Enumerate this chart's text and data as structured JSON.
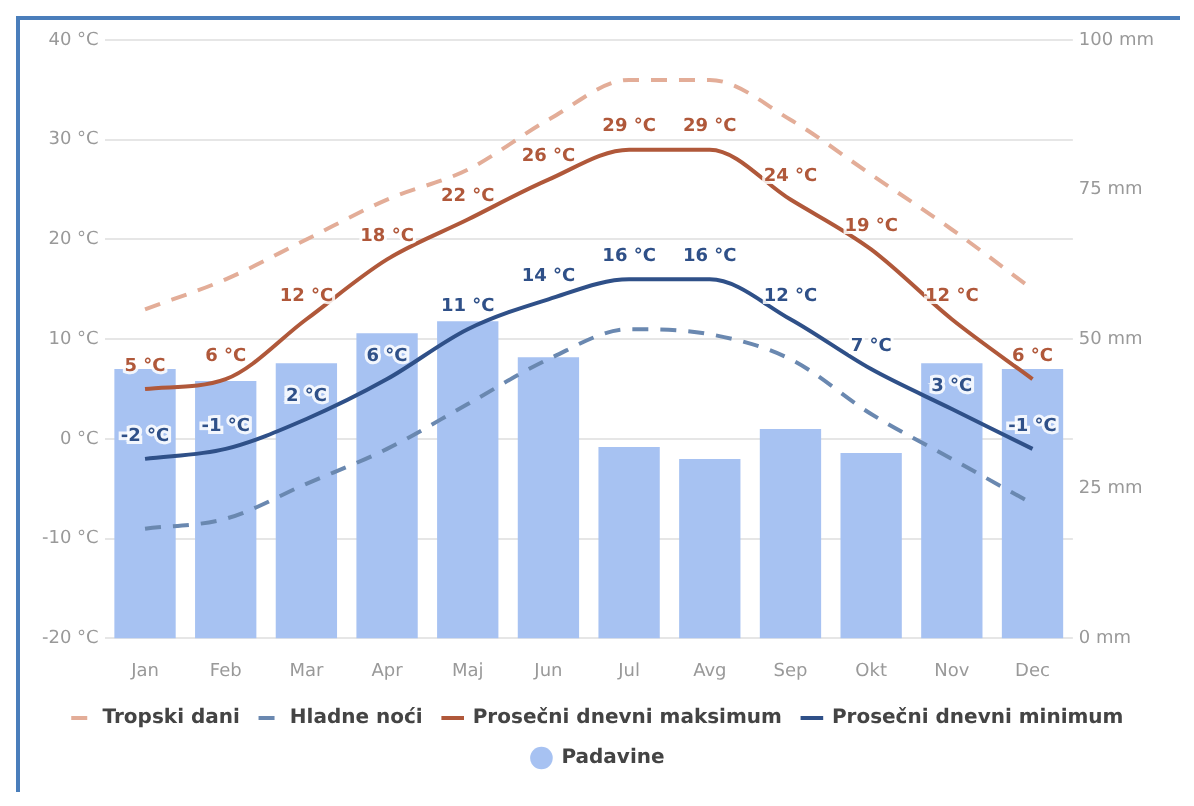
{
  "chart_data": {
    "type": "bar",
    "categories": [
      "Jan",
      "Feb",
      "Mar",
      "Apr",
      "Maj",
      "Jun",
      "Jul",
      "Avg",
      "Sep",
      "Okt",
      "Nov",
      "Dec"
    ],
    "series": [
      {
        "name": "Padavine",
        "axis": "y2",
        "color": "#a7c2f2",
        "values": [
          45,
          43,
          46,
          51,
          53,
          47,
          32,
          30,
          35,
          31,
          46,
          45
        ]
      },
      {
        "name": "Tropski dani",
        "type": "line",
        "line_style": "dashed",
        "color": "#e3ad98",
        "values": [
          13,
          16,
          20,
          24,
          27,
          32,
          36,
          36,
          32,
          26.5,
          21,
          15
        ]
      },
      {
        "name": "Hladne noći",
        "type": "line",
        "line_style": "dashed",
        "color": "#6a88b0",
        "values": [
          -9,
          -8,
          -4.5,
          -1,
          3.5,
          8,
          11,
          10.5,
          8,
          2.5,
          -2,
          -6.5
        ]
      },
      {
        "name": "Prosečni dnevni maksimum",
        "type": "line",
        "line_style": "solid",
        "color": "#b0583a",
        "values": [
          5,
          6,
          12,
          18,
          22,
          26,
          29,
          29,
          24,
          19,
          12,
          6
        ],
        "value_labels": [
          "5 °C",
          "6 °C",
          "12 °C",
          "18 °C",
          "22 °C",
          "26 °C",
          "29 °C",
          "29 °C",
          "24 °C",
          "19 °C",
          "12 °C",
          "6 °C"
        ]
      },
      {
        "name": "Prosečni dnevni minimum",
        "type": "line",
        "line_style": "solid",
        "color": "#2f5088",
        "values": [
          -2,
          -1,
          2,
          6,
          11,
          14,
          16,
          16,
          12,
          7,
          3,
          -1
        ],
        "value_labels": [
          "-2 °C",
          "-1 °C",
          "2 °C",
          "6 °C",
          "11 °C",
          "14 °C",
          "16 °C",
          "16 °C",
          "12 °C",
          "7 °C",
          "3 °C",
          "-1 °C"
        ]
      }
    ],
    "ylim": [
      -20,
      40
    ],
    "yticks": [
      {
        "value": -20,
        "label": "-20 °C"
      },
      {
        "value": -10,
        "label": "-10 °C"
      },
      {
        "value": 0,
        "label": "0 °C"
      },
      {
        "value": 10,
        "label": "10 °C"
      },
      {
        "value": 20,
        "label": "20 °C"
      },
      {
        "value": 30,
        "label": "30 °C"
      },
      {
        "value": 40,
        "label": "40 °C"
      }
    ],
    "y2lim": [
      0,
      100
    ],
    "y2ticks": [
      {
        "value": 0,
        "label": "0 mm"
      },
      {
        "value": 25,
        "label": "25 mm"
      },
      {
        "value": 50,
        "label": "50 mm"
      },
      {
        "value": 75,
        "label": "75 mm"
      },
      {
        "value": 100,
        "label": "100 mm"
      }
    ],
    "grid": "y",
    "legend": "bottom",
    "marker": "none"
  }
}
